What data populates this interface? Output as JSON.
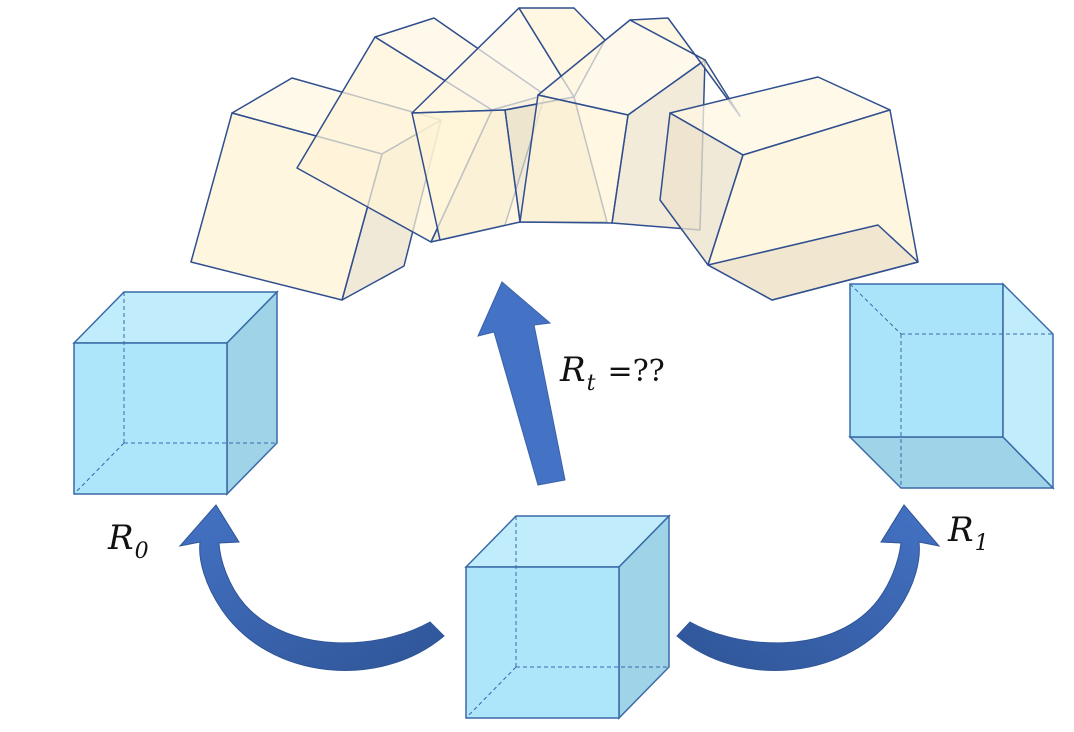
{
  "labels": {
    "r0": {
      "symbol": "R",
      "subscript": "0"
    },
    "r1": {
      "symbol": "R",
      "subscript": "1"
    },
    "rt": {
      "symbol": "R",
      "subscript": "t",
      "rest": "=??"
    }
  },
  "colors": {
    "cube_fill": "#a9e4fb",
    "cube_side": "#9fd3e8",
    "cube_top": "#c0ecfc",
    "cube_edge": "#3a6aa8",
    "interp_fill": "#fff3d6",
    "interp_side": "#efe2c6",
    "interp_edge": "#2f4f8f",
    "arrow_fill": "#4472c4",
    "arrow_dark": "#2f5597"
  },
  "icons": {
    "up_arrow": "up-arrow-icon",
    "curved_arrow_left": "curved-arrow-left-icon",
    "curved_arrow_right": "curved-arrow-right-icon"
  }
}
